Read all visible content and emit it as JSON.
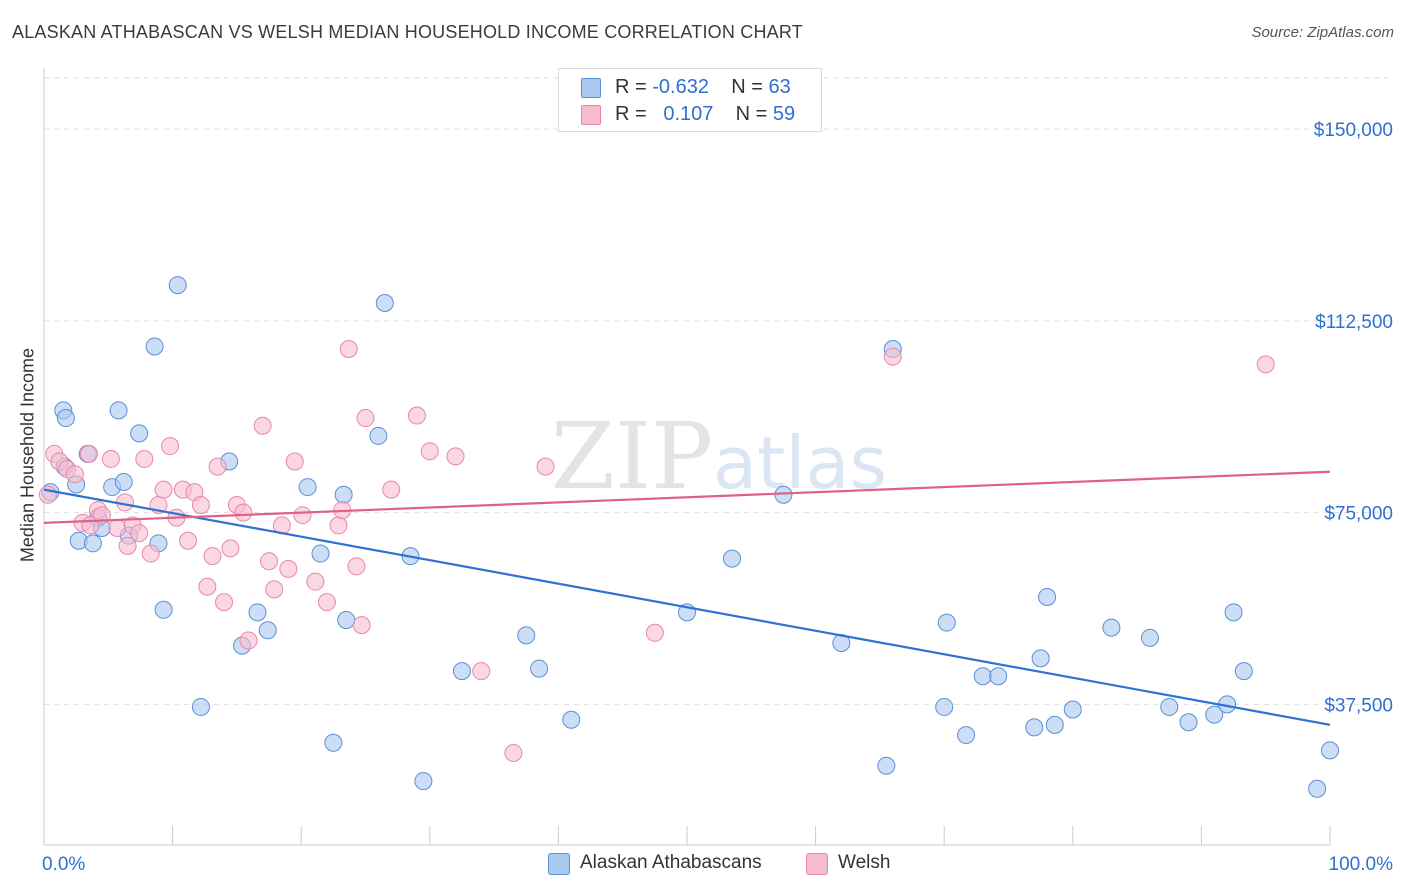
{
  "header": {
    "title": "ALASKAN ATHABASCAN VS WELSH MEDIAN HOUSEHOLD INCOME CORRELATION CHART",
    "source": "Source: ZipAtlas.com"
  },
  "legend": {
    "rows": [
      {
        "r_label": "R = ",
        "r_value": "-0.632",
        "n_label": "N = ",
        "n_value": "63"
      },
      {
        "r_label": "R = ",
        "r_value": "0.107",
        "n_label": "N = ",
        "n_value": "59"
      }
    ]
  },
  "watermark": {
    "zip": "ZIP",
    "atlas": "atlas"
  },
  "colors": {
    "blue_fill": "#aac8f0",
    "blue_stroke": "#5b8fd6",
    "blue_line": "#2f72d3",
    "pink_fill": "#f7bcd0",
    "pink_stroke": "#e888a8",
    "pink_line": "#e0608a",
    "axis_label": "#2f6fd1",
    "grid": "#dddddd"
  },
  "chart_data": {
    "type": "scatter",
    "title": "ALASKAN ATHABASCAN VS WELSH MEDIAN HOUSEHOLD INCOME CORRELATION CHART",
    "xlabel": "",
    "ylabel": "Median Household Income",
    "xlim": [
      0,
      100
    ],
    "ylim": [
      10000,
      160000
    ],
    "x_tick_labels": [
      "0.0%",
      "100.0%"
    ],
    "y_ticks": [
      37500,
      75000,
      112500,
      150000
    ],
    "y_tick_labels": [
      "$37,500",
      "$75,000",
      "$112,500",
      "$150,000"
    ],
    "grid": true,
    "legend_position": "top-center",
    "series": [
      {
        "name": "Alaskan Athabascans",
        "color": "#aac8f0",
        "r": "-0.632",
        "n": "63",
        "trend": [
          [
            0,
            79500
          ],
          [
            100,
            33500
          ]
        ],
        "points": [
          [
            0.5,
            79000
          ],
          [
            1.5,
            95000
          ],
          [
            1.7,
            93500
          ],
          [
            1.6,
            84000
          ],
          [
            2.5,
            80500
          ],
          [
            2.7,
            69500
          ],
          [
            3.4,
            86500
          ],
          [
            3.8,
            69000
          ],
          [
            4.2,
            74000
          ],
          [
            4.5,
            72000
          ],
          [
            5.3,
            80000
          ],
          [
            5.8,
            95000
          ],
          [
            6.2,
            81000
          ],
          [
            6.6,
            70500
          ],
          [
            7.4,
            90500
          ],
          [
            8.6,
            107500
          ],
          [
            8.9,
            69000
          ],
          [
            9.3,
            56000
          ],
          [
            10.4,
            119500
          ],
          [
            12.2,
            37000
          ],
          [
            14.4,
            85000
          ],
          [
            15.4,
            49000
          ],
          [
            16.6,
            55500
          ],
          [
            17.4,
            52000
          ],
          [
            20.5,
            80000
          ],
          [
            21.5,
            67000
          ],
          [
            22.5,
            30000
          ],
          [
            23.3,
            78500
          ],
          [
            23.5,
            54000
          ],
          [
            26.0,
            90000
          ],
          [
            26.5,
            116000
          ],
          [
            28.5,
            66500
          ],
          [
            29.5,
            22500
          ],
          [
            32.5,
            44000
          ],
          [
            37.5,
            51000
          ],
          [
            38.5,
            44500
          ],
          [
            41.0,
            34500
          ],
          [
            50.0,
            55500
          ],
          [
            53.5,
            66000
          ],
          [
            57.5,
            78500
          ],
          [
            62.0,
            49500
          ],
          [
            65.5,
            25500
          ],
          [
            66.0,
            107000
          ],
          [
            70.0,
            37000
          ],
          [
            70.2,
            53500
          ],
          [
            71.7,
            31500
          ],
          [
            73.0,
            43000
          ],
          [
            74.2,
            43000
          ],
          [
            77.0,
            33000
          ],
          [
            77.5,
            46500
          ],
          [
            78.0,
            58500
          ],
          [
            78.6,
            33500
          ],
          [
            80.0,
            36500
          ],
          [
            83.0,
            52500
          ],
          [
            86.0,
            50500
          ],
          [
            87.5,
            37000
          ],
          [
            89.0,
            34000
          ],
          [
            91.0,
            35500
          ],
          [
            92.0,
            37500
          ],
          [
            92.5,
            55500
          ],
          [
            93.3,
            44000
          ],
          [
            99.0,
            21000
          ],
          [
            100.0,
            28500
          ]
        ]
      },
      {
        "name": "Welsh",
        "color": "#f7bcd0",
        "r": "0.107",
        "n": "59",
        "trend": [
          [
            0,
            73000
          ],
          [
            100,
            83000
          ]
        ],
        "points": [
          [
            0.3,
            78500
          ],
          [
            0.8,
            86500
          ],
          [
            1.2,
            85000
          ],
          [
            1.8,
            83500
          ],
          [
            2.4,
            82500
          ],
          [
            3.0,
            73000
          ],
          [
            3.6,
            72500
          ],
          [
            4.2,
            75500
          ],
          [
            4.5,
            74500
          ],
          [
            5.2,
            85500
          ],
          [
            5.7,
            72000
          ],
          [
            6.3,
            77000
          ],
          [
            6.5,
            68500
          ],
          [
            6.9,
            72500
          ],
          [
            7.4,
            71000
          ],
          [
            7.8,
            85500
          ],
          [
            8.3,
            67000
          ],
          [
            8.9,
            76500
          ],
          [
            9.3,
            79500
          ],
          [
            9.8,
            88000
          ],
          [
            10.3,
            74000
          ],
          [
            10.8,
            79500
          ],
          [
            11.2,
            69500
          ],
          [
            11.7,
            79000
          ],
          [
            12.2,
            76500
          ],
          [
            12.7,
            60500
          ],
          [
            13.1,
            66500
          ],
          [
            13.5,
            84000
          ],
          [
            14.0,
            57500
          ],
          [
            14.5,
            68000
          ],
          [
            15.0,
            76500
          ],
          [
            15.5,
            75000
          ],
          [
            15.9,
            50000
          ],
          [
            17.0,
            92000
          ],
          [
            17.5,
            65500
          ],
          [
            17.9,
            60000
          ],
          [
            18.5,
            72500
          ],
          [
            19.0,
            64000
          ],
          [
            19.5,
            85000
          ],
          [
            20.1,
            74500
          ],
          [
            21.1,
            61500
          ],
          [
            22.0,
            57500
          ],
          [
            22.9,
            72500
          ],
          [
            23.2,
            75500
          ],
          [
            23.7,
            107000
          ],
          [
            24.3,
            64500
          ],
          [
            24.7,
            53000
          ],
          [
            25.0,
            93500
          ],
          [
            27.0,
            79500
          ],
          [
            29.0,
            94000
          ],
          [
            30.0,
            87000
          ],
          [
            32.0,
            86000
          ],
          [
            34.0,
            44000
          ],
          [
            36.5,
            28000
          ],
          [
            39.0,
            84000
          ],
          [
            47.5,
            51500
          ],
          [
            66.0,
            105500
          ],
          [
            95.0,
            104000
          ],
          [
            3.5,
            86500
          ]
        ]
      }
    ]
  }
}
